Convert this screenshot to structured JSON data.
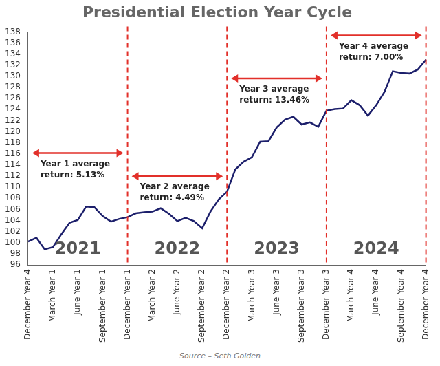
{
  "chart_data": {
    "type": "line",
    "title": "Presidential Election Year Cycle",
    "source": "Source – Seth Golden",
    "categories": [
      "December Year 4",
      null,
      null,
      "March Year 1",
      null,
      null,
      "June Year 1",
      null,
      null,
      "September Year 1",
      null,
      null,
      "December Year 1",
      null,
      null,
      "March Year 2",
      null,
      null,
      "June Year 2",
      null,
      null,
      "September Year 2",
      null,
      null,
      "December Year 2",
      null,
      null,
      "March Year 3",
      null,
      null,
      "June Year 3",
      null,
      null,
      "September Year 3",
      null,
      null,
      "December Year 3",
      null,
      null,
      "March Year 4",
      null,
      null,
      "June Year 4",
      null,
      null,
      "September Year 4",
      null,
      null,
      "December Year 4"
    ],
    "values": [
      100.2,
      100.9,
      98.8,
      99.2,
      101.5,
      103.6,
      104.1,
      106.5,
      106.4,
      104.8,
      103.8,
      104.3,
      104.6,
      105.3,
      105.5,
      105.6,
      106.2,
      105.2,
      103.9,
      104.5,
      103.9,
      102.6,
      105.6,
      107.8,
      109.2,
      113.2,
      114.6,
      115.4,
      118.2,
      118.3,
      120.8,
      122.2,
      122.7,
      121.3,
      121.7,
      120.9,
      123.8,
      124.1,
      124.2,
      125.7,
      124.8,
      122.9,
      124.8,
      127.2,
      130.9,
      130.6,
      130.5,
      131.2,
      133.0
    ],
    "color": "#1c1f6b",
    "ylim": [
      96,
      138
    ],
    "yticks": [
      96,
      98,
      100,
      102,
      104,
      106,
      108,
      110,
      112,
      114,
      116,
      118,
      120,
      122,
      124,
      126,
      128,
      130,
      132,
      134,
      136,
      138
    ],
    "grid": false,
    "periods": [
      {
        "label": "2021",
        "note": [
          "Year 1 average",
          "return: 5.13%"
        ],
        "color": "#e2302a"
      },
      {
        "label": "2022",
        "note": [
          "Year 2 average",
          "return: 4.49%"
        ],
        "color": "#e2302a"
      },
      {
        "label": "2023",
        "note": [
          "Year 3 average",
          "return: 13.46%"
        ],
        "color": "#e2302a"
      },
      {
        "label": "2024",
        "note": [
          "Year 4 average",
          "return: 7.00%"
        ],
        "color": "#e2302a"
      }
    ]
  }
}
